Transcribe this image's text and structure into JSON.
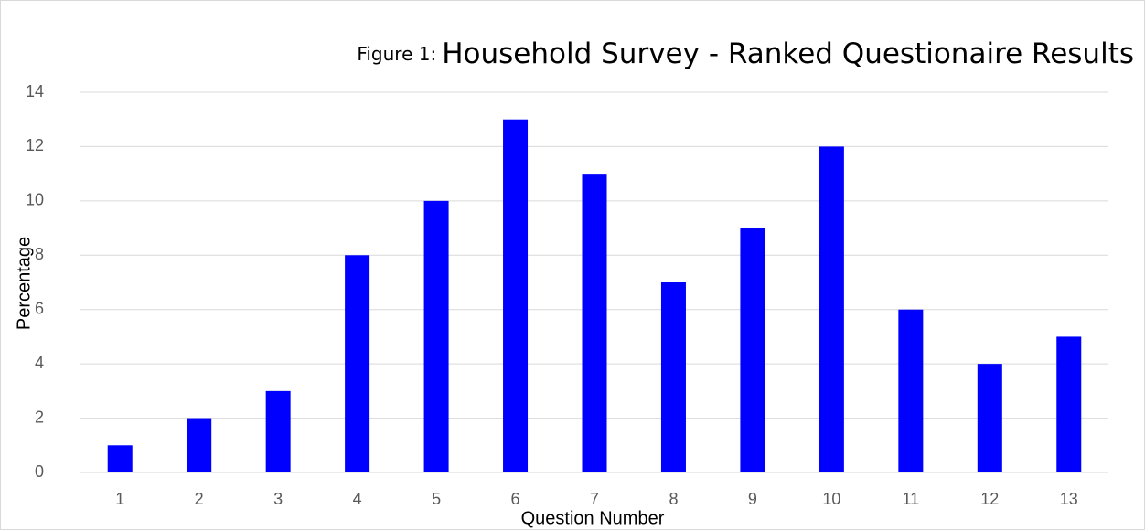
{
  "chart_data": {
    "type": "bar",
    "figure_label": "Figure 1:",
    "title": "Household Survey - Ranked Questionaire Results",
    "x_label": "Question Number",
    "y_label": "Percentage",
    "categories": [
      "1",
      "2",
      "3",
      "4",
      "5",
      "6",
      "7",
      "8",
      "9",
      "10",
      "11",
      "12",
      "13"
    ],
    "values": [
      1,
      2,
      3,
      8,
      10,
      13,
      11,
      7,
      9,
      12,
      6,
      4,
      5
    ],
    "color": "#0000ff",
    "ylim": [
      0,
      14
    ],
    "yticks": [
      0,
      2,
      4,
      6,
      8,
      10,
      12,
      14
    ],
    "grid": true
  }
}
